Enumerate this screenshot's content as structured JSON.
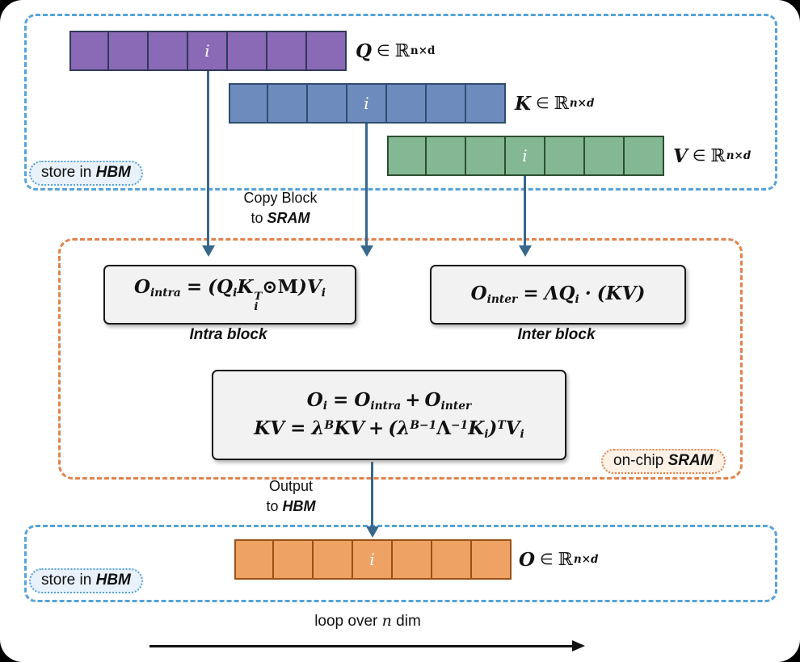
{
  "colors": {
    "hbm_border": "#56a3d8",
    "hbm_pill_bg": "#e9f2fb",
    "sram_border": "#e0834d",
    "sram_pill_bg": "#fdf0e5",
    "arrow": "#38678c",
    "formula_box_bg": "#f2f2f2",
    "q_fill": "#8a69b6",
    "q_border": "#2f3a57",
    "k_fill": "#6e8bbd",
    "k_border": "#2e4d6e",
    "v_fill": "#84b894",
    "v_border": "#2e4e30",
    "o_fill": "#eea263",
    "o_border": "#995117"
  },
  "hbm_top": {
    "label_prefix": "store in ",
    "label_bold": "HBM"
  },
  "hbm_bottom": {
    "label_prefix": "store in ",
    "label_bold": "HBM"
  },
  "sram": {
    "label_prefix": "on-chip ",
    "label_bold": "SRAM"
  },
  "matrices": {
    "q": {
      "cells": 7,
      "i_index": 4,
      "i_label": "i",
      "symbol": "Q",
      "element_sign": "∈",
      "set_symbol": "ℝ",
      "sup": "n×d"
    },
    "k": {
      "cells": 7,
      "i_index": 4,
      "i_label": "i",
      "symbol": "K",
      "element_sign": "∈",
      "set_symbol": "ℝ",
      "sup": "n×d"
    },
    "v": {
      "cells": 7,
      "i_index": 4,
      "i_label": "i",
      "symbol": "V",
      "element_sign": "∈",
      "set_symbol": "ℝ",
      "sup": "n×d"
    },
    "o": {
      "cells": 7,
      "i_index": 4,
      "i_label": "i",
      "symbol": "O",
      "element_sign": "∈",
      "set_symbol": "ℝ",
      "sup": "n×d"
    }
  },
  "copy_note": {
    "line1": "Copy Block",
    "line2_prefix": "to ",
    "line2_bold": "SRAM"
  },
  "output_note": {
    "line1": "Output",
    "line2_prefix": "to ",
    "line2_bold": "HBM"
  },
  "intra": {
    "caption": "Intra block",
    "f": {
      "o": "O",
      "o_sub": "intra",
      "eq": "=",
      "open": "(",
      "q": "Q",
      "q_sub": "i",
      "k": "K",
      "k_sup": "T",
      "k_sub": "i",
      "odot": "⊙",
      "m": "M",
      "close": ")",
      "v": "V",
      "v_sub": "i"
    }
  },
  "inter": {
    "caption": "Inter block",
    "f": {
      "o": "O",
      "o_sub": "inter",
      "eq": "=",
      "lambda": "Λ",
      "q": "Q",
      "q_sub": "i",
      "dot": "·",
      "open": "(",
      "kv": "KV",
      "close": ")"
    }
  },
  "update": {
    "line1": {
      "o": "O",
      "o_sub": "i",
      "eq": "=",
      "a": "O",
      "a_sub": "intra",
      "plus": "+",
      "b": "O",
      "b_sub": "inter"
    },
    "line2": {
      "kv": "KV",
      "eq": "=",
      "lam1": "λ",
      "lam1_sup": "B",
      "kv2": "KV",
      "plus": "+",
      "open": "(",
      "lam2": "λ",
      "lam2_sup": "B−1",
      "Lam": "Λ",
      "Lam_sup": "−1",
      "k": "K",
      "k_sub": "i",
      "close": ")",
      "close_sup": "T",
      "v": "V",
      "v_sub": "i"
    }
  },
  "loop": {
    "prefix": "loop over ",
    "var": "n",
    "suffix": " dim"
  }
}
